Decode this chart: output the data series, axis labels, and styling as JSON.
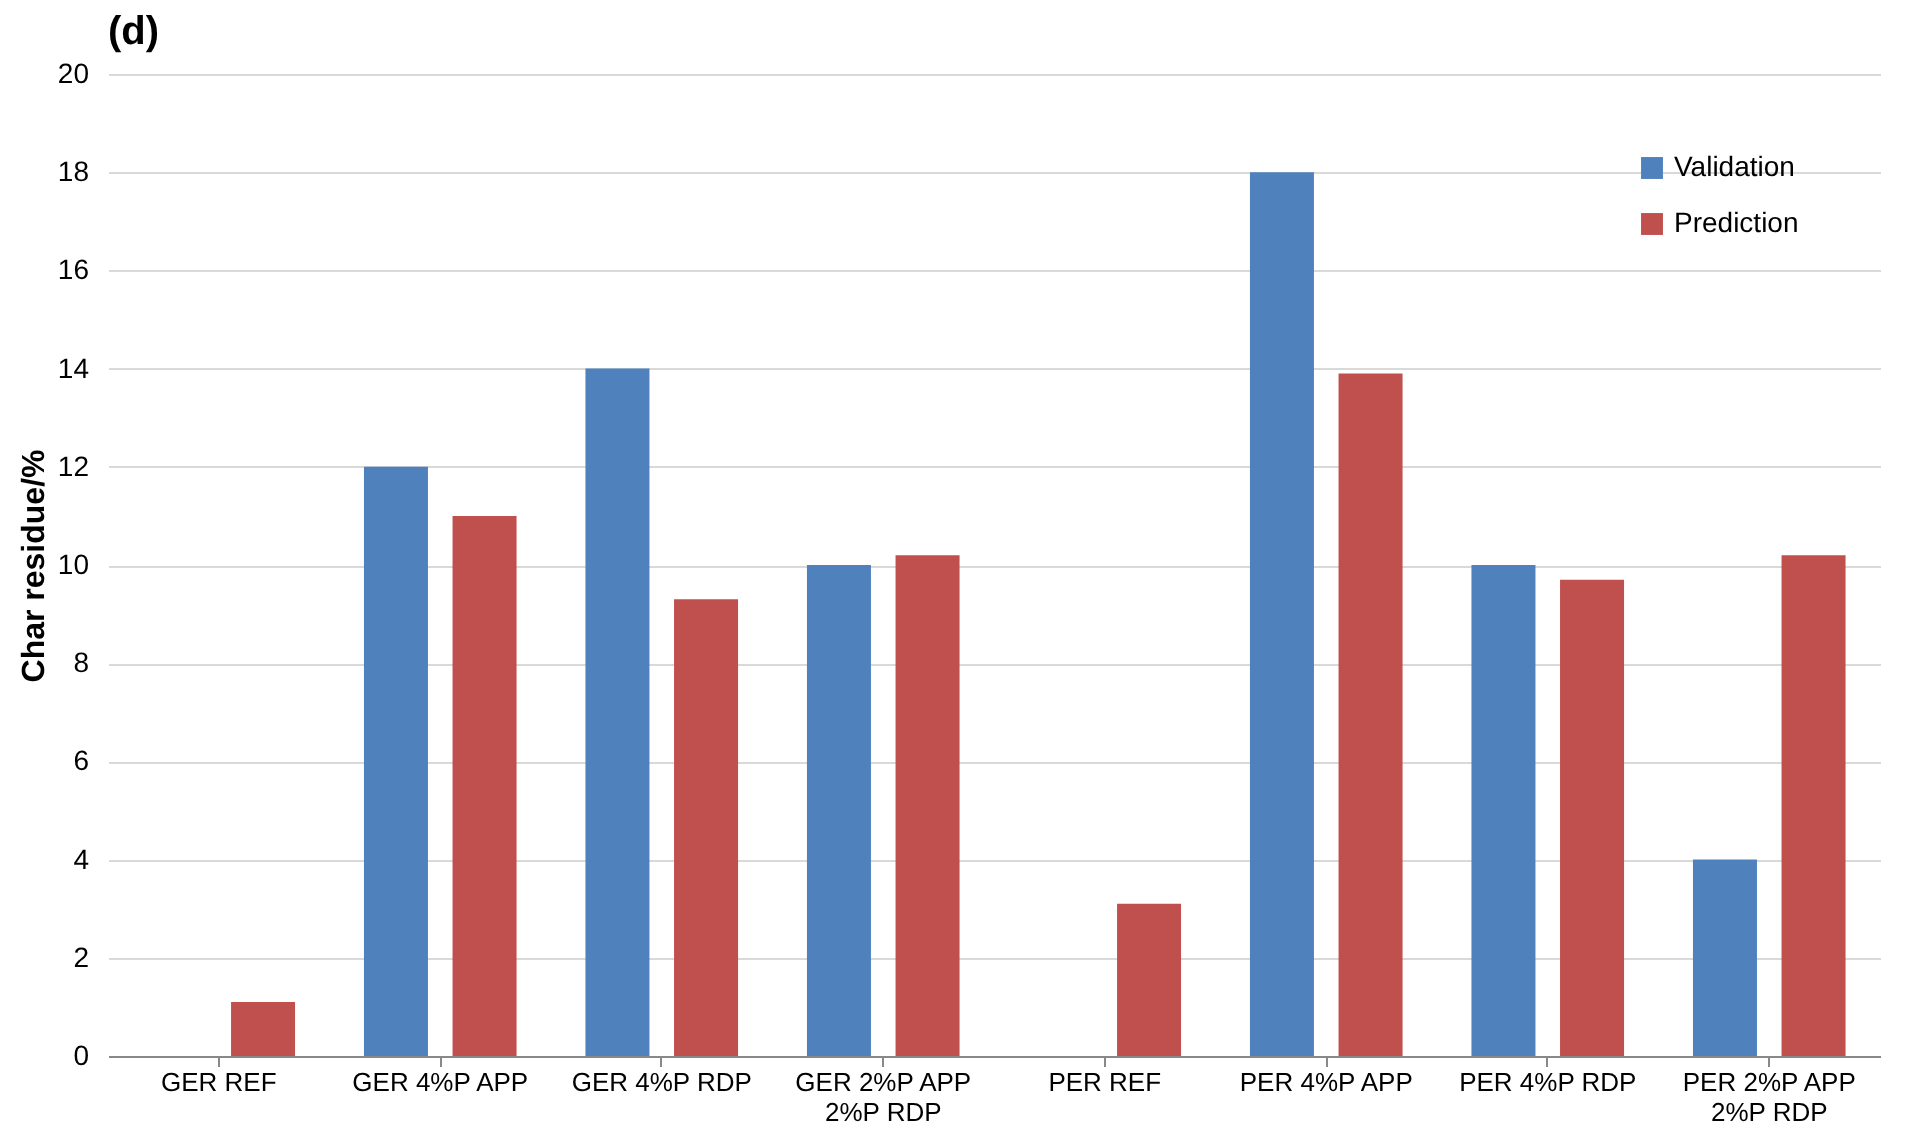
{
  "chart_data": {
    "type": "bar",
    "title": "(d)",
    "ylabel": "Char residue/%",
    "categories": [
      "GER REF",
      "GER 4%P APP",
      "GER 4%P RDP",
      "GER 2%P APP 2%P RDP",
      "PER REF",
      "PER 4%P APP",
      "PER 4%P RDP",
      "PER 2%P APP 2%P RDP"
    ],
    "series": [
      {
        "name": "Validation",
        "color": "#4f81bd",
        "values": [
          null,
          12,
          14,
          10,
          null,
          18,
          10,
          4
        ]
      },
      {
        "name": "Prediction",
        "color": "#c0504d",
        "values": [
          1.1,
          11,
          9.3,
          10.2,
          3.1,
          13.9,
          9.7,
          10.2
        ]
      }
    ],
    "ylim": [
      0,
      20
    ],
    "yticks": [
      0,
      2,
      4,
      6,
      8,
      10,
      12,
      14,
      16,
      18,
      20
    ],
    "grid": "y",
    "legend": "top right"
  }
}
